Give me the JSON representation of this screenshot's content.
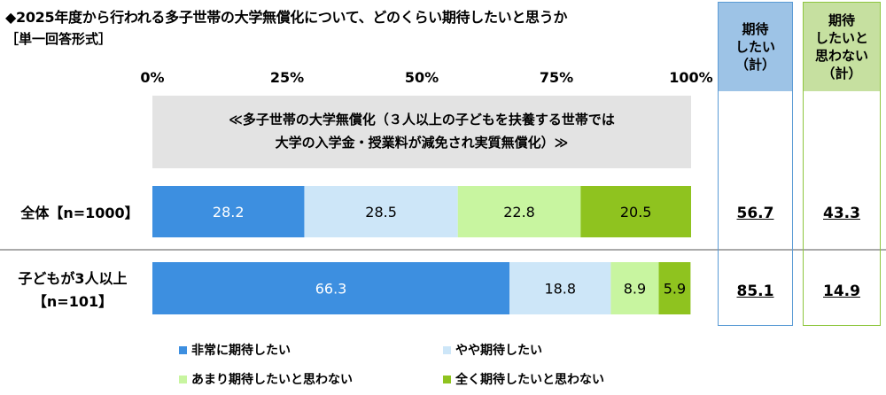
{
  "title": "◆2025年度から行われる多子世帯の大学無償化について、どのくらい期待したいと思うか",
  "subtitle": "［単一回答形式］",
  "summary_headers": {
    "expect": [
      "期待",
      "したい",
      "（計）"
    ],
    "no_expect": [
      "期待",
      "したいと",
      "思わない",
      "（計）"
    ]
  },
  "summary_values": {
    "expect": [
      "56.7",
      "85.1"
    ],
    "no_expect": [
      "43.3",
      "14.9"
    ]
  },
  "chart_data": {
    "type": "bar",
    "orientation": "horizontal",
    "stacked": true,
    "xlim": [
      0,
      100
    ],
    "ticks": [
      "0%",
      "25%",
      "50%",
      "75%",
      "100%"
    ],
    "banner": [
      "≪多子世帯の大学無償化（３人以上の子どもを扶養する世帯では",
      "大学の入学金・授業料が減免され実質無償化）≫"
    ],
    "categories": [
      [
        "全体【n=1000】"
      ],
      [
        "子どもが3人以上",
        "【n=101】"
      ]
    ],
    "series": [
      {
        "name": "非常に期待したい",
        "color": "#3d8fe0",
        "label_color": "#ffffff",
        "values": [
          28.2,
          66.3
        ]
      },
      {
        "name": "やや期待したい",
        "color": "#cde6f8",
        "label_color": "#000000",
        "values": [
          28.5,
          18.8
        ]
      },
      {
        "name": "あまり期待したいと思わない",
        "color": "#c8f5a0",
        "label_color": "#000000",
        "values": [
          22.8,
          8.9
        ]
      },
      {
        "name": "全く期待したいと思わない",
        "color": "#8fc31f",
        "label_color": "#000000",
        "values": [
          20.5,
          5.9
        ]
      }
    ],
    "legend_position": "bottom"
  }
}
